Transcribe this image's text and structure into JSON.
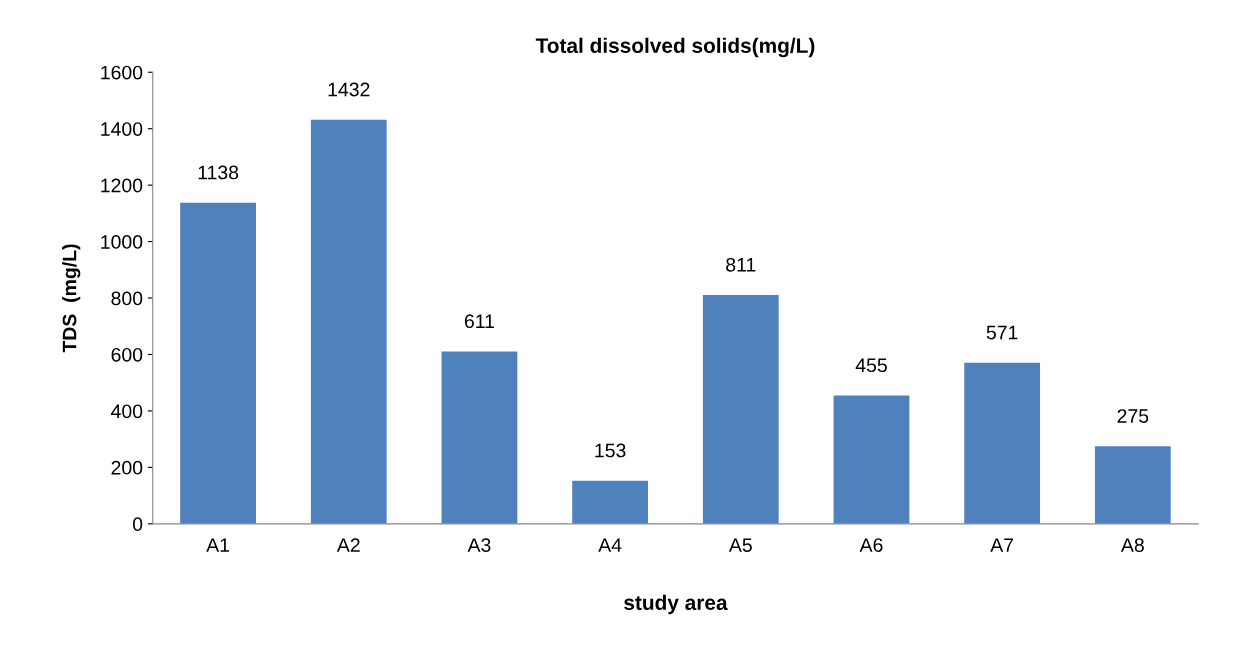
{
  "chart_data": {
    "type": "bar",
    "title": "Total dissolved solids(mg/L)",
    "xlabel": "study area",
    "ylabel": "TDS  (mg/L)",
    "categories": [
      "A1",
      "A2",
      "A3",
      "A4",
      "A5",
      "A6",
      "A7",
      "A8"
    ],
    "values": [
      1138,
      1432,
      611,
      153,
      811,
      455,
      571,
      275
    ],
    "color": "#4f81bd",
    "ylim": [
      0,
      1600
    ],
    "yticks": [
      0,
      200,
      400,
      600,
      800,
      1000,
      1200,
      1400,
      1600
    ],
    "grid": false,
    "data_labels": true
  }
}
